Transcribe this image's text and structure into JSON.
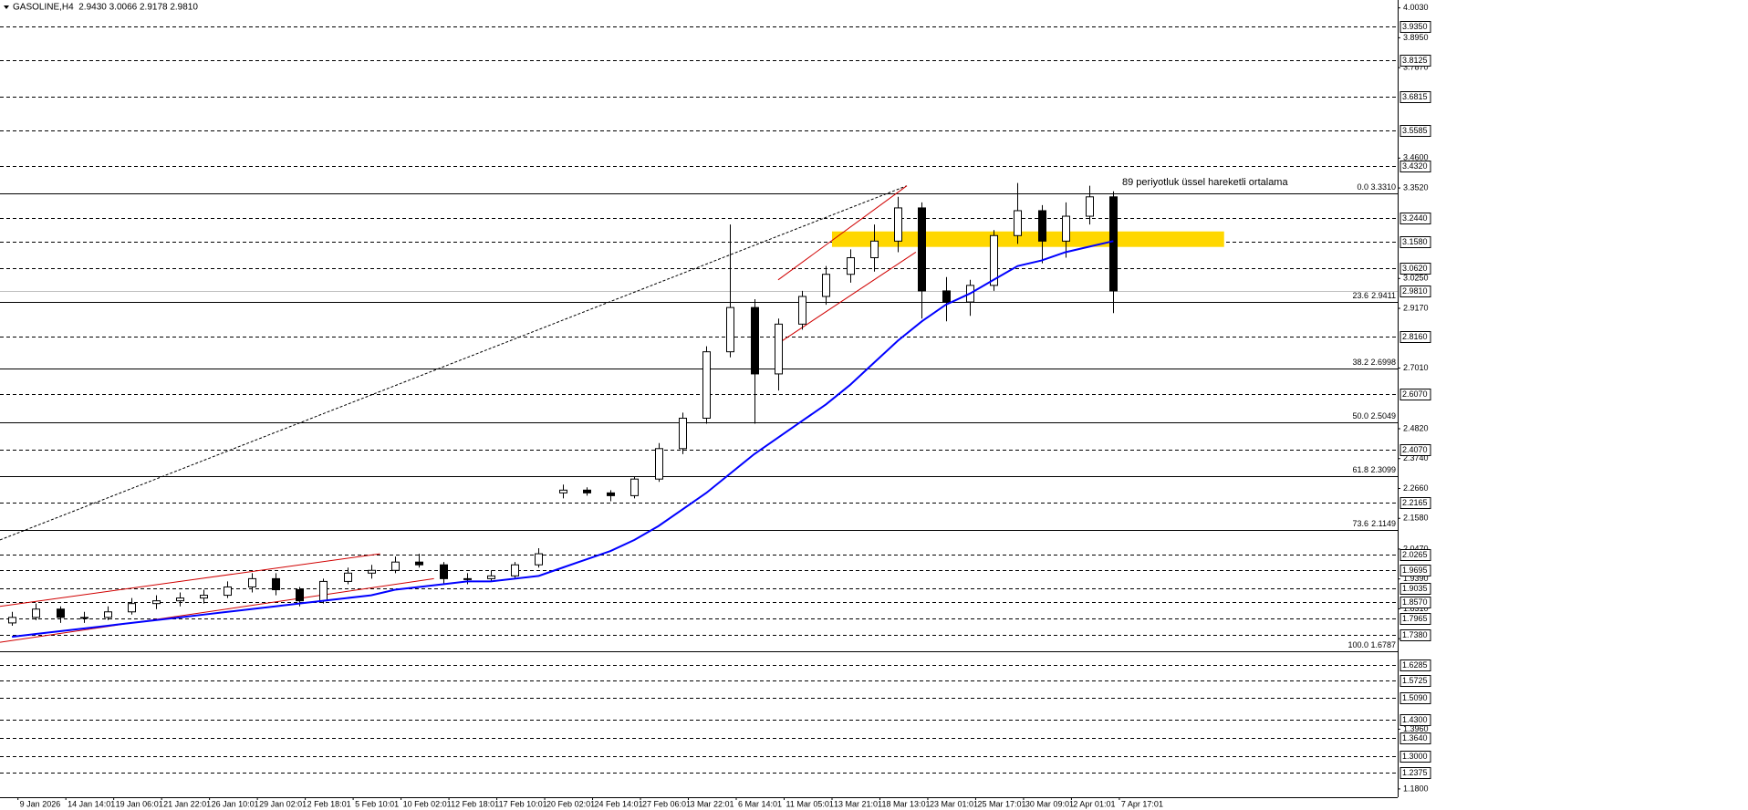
{
  "chart_data": {
    "type": "candlestick",
    "title": "GASOLINE,H4  2.9430 3.0066 2.9178 2.9810",
    "annotation": "89 periyotluk üssel hareketli ortalama",
    "x": [
      4,
      12,
      20,
      28,
      36,
      44,
      52,
      60,
      68,
      76,
      84,
      92,
      100,
      108,
      116,
      124,
      132,
      140,
      148,
      156,
      164,
      172,
      180,
      188,
      196,
      204,
      212,
      220,
      228,
      236,
      244,
      252,
      260,
      268,
      276,
      284,
      292,
      300,
      308,
      316,
      324,
      332,
      340,
      348,
      356,
      364,
      372
    ],
    "open": [
      1.78,
      1.8,
      1.83,
      1.8,
      1.8,
      1.82,
      1.85,
      1.86,
      1.87,
      1.88,
      1.91,
      1.94,
      1.9,
      1.86,
      1.93,
      1.96,
      1.97,
      2.0,
      1.99,
      1.94,
      1.94,
      1.95,
      1.99,
      2.25,
      2.26,
      2.25,
      2.24,
      2.3,
      2.41,
      2.52,
      2.76,
      2.92,
      2.68,
      2.86,
      2.96,
      3.04,
      3.1,
      3.16,
      3.28,
      2.98,
      2.94,
      3.0,
      3.18,
      3.27,
      3.16,
      3.25,
      3.32
    ],
    "high": [
      1.82,
      1.85,
      1.84,
      1.82,
      1.84,
      1.87,
      1.88,
      1.89,
      1.9,
      1.93,
      1.96,
      1.96,
      1.91,
      1.94,
      1.98,
      1.99,
      2.02,
      2.03,
      2.0,
      1.96,
      1.97,
      2.0,
      2.05,
      2.28,
      2.27,
      2.26,
      2.31,
      2.43,
      2.54,
      2.78,
      3.22,
      2.95,
      2.88,
      2.98,
      3.07,
      3.13,
      3.22,
      3.32,
      3.3,
      3.03,
      3.02,
      3.2,
      3.37,
      3.29,
      3.3,
      3.36,
      3.34
    ],
    "low": [
      1.77,
      1.79,
      1.78,
      1.78,
      1.79,
      1.81,
      1.83,
      1.84,
      1.85,
      1.87,
      1.89,
      1.88,
      1.84,
      1.85,
      1.92,
      1.94,
      1.96,
      1.98,
      1.92,
      1.92,
      1.93,
      1.94,
      1.98,
      2.23,
      2.24,
      2.22,
      2.23,
      2.29,
      2.39,
      2.5,
      2.74,
      2.5,
      2.62,
      2.84,
      2.93,
      3.01,
      3.05,
      3.12,
      2.88,
      2.87,
      2.89,
      2.98,
      3.15,
      3.08,
      3.1,
      3.22,
      2.9
    ],
    "close": [
      1.8,
      1.83,
      1.8,
      1.8,
      1.82,
      1.85,
      1.86,
      1.87,
      1.88,
      1.91,
      1.94,
      1.9,
      1.86,
      1.93,
      1.96,
      1.97,
      2.0,
      1.99,
      1.94,
      1.94,
      1.95,
      1.99,
      2.03,
      2.26,
      2.25,
      2.24,
      2.3,
      2.41,
      2.52,
      2.76,
      2.92,
      2.68,
      2.86,
      2.96,
      3.04,
      3.1,
      3.16,
      3.28,
      2.98,
      2.94,
      3.0,
      3.18,
      3.27,
      3.16,
      3.25,
      3.32,
      2.98
    ],
    "ema": {
      "color": "#0000ff",
      "values": [
        1.73,
        1.74,
        1.75,
        1.76,
        1.77,
        1.78,
        1.79,
        1.8,
        1.81,
        1.82,
        1.83,
        1.84,
        1.85,
        1.86,
        1.87,
        1.88,
        1.9,
        1.91,
        1.92,
        1.93,
        1.93,
        1.94,
        1.95,
        1.98,
        2.01,
        2.04,
        2.08,
        2.13,
        2.19,
        2.25,
        2.32,
        2.39,
        2.45,
        2.51,
        2.57,
        2.64,
        2.72,
        2.8,
        2.87,
        2.93,
        2.97,
        3.02,
        3.07,
        3.09,
        3.12,
        3.14,
        3.16
      ]
    },
    "xlim": [
      0,
      467
    ],
    "xticks": [
      {
        "value": 6,
        "label": "9 Jan 2026"
      },
      {
        "value": 22,
        "label": "14 Jan 14:01"
      },
      {
        "value": 38,
        "label": "19 Jan 06:01"
      },
      {
        "value": 54,
        "label": "21 Jan 22:01"
      },
      {
        "value": 70,
        "label": "26 Jan 10:01"
      },
      {
        "value": 86,
        "label": "29 Jan 02:01"
      },
      {
        "value": 102,
        "label": "2 Feb 18:01"
      },
      {
        "value": 118,
        "label": "5 Feb 10:01"
      },
      {
        "value": 134,
        "label": "10 Feb 02:01"
      },
      {
        "value": 150,
        "label": "12 Feb 18:01"
      },
      {
        "value": 166,
        "label": "17 Feb 10:01"
      },
      {
        "value": 182,
        "label": "20 Feb 02:01"
      },
      {
        "value": 198,
        "label": "24 Feb 14:01"
      },
      {
        "value": 214,
        "label": "27 Feb 06:01"
      },
      {
        "value": 230,
        "label": "3 Mar 22:01"
      },
      {
        "value": 246,
        "label": "6 Mar 14:01"
      },
      {
        "value": 262,
        "label": "11 Mar 05:01"
      },
      {
        "value": 278,
        "label": "13 Mar 21:01"
      },
      {
        "value": 294,
        "label": "18 Mar 13:01"
      },
      {
        "value": 310,
        "label": "23 Mar 01:01"
      },
      {
        "value": 326,
        "label": "25 Mar 17:01"
      },
      {
        "value": 342,
        "label": "30 Mar 09:01"
      },
      {
        "value": 358,
        "label": "2 Apr 01:01"
      },
      {
        "value": 374,
        "label": "7 Apr 17:01"
      }
    ],
    "ylim": [
      1.15,
      4.015
    ],
    "yticks": [
      {
        "value": 4.003,
        "label": "4.0030"
      },
      {
        "value": 3.895,
        "label": "3.8950"
      },
      {
        "value": 3.787,
        "label": "3.7870"
      },
      {
        "value": 3.46,
        "label": "3.4600"
      },
      {
        "value": 3.352,
        "label": "3.3520"
      },
      {
        "value": 3.025,
        "label": "3.0250"
      },
      {
        "value": 2.917,
        "label": "2.9170"
      },
      {
        "value": 2.701,
        "label": "2.7010"
      },
      {
        "value": 2.482,
        "label": "2.4820"
      },
      {
        "value": 2.374,
        "label": "2.3740"
      },
      {
        "value": 2.266,
        "label": "2.2660"
      },
      {
        "value": 2.158,
        "label": "2.1580"
      },
      {
        "value": 2.047,
        "label": "2.0470"
      },
      {
        "value": 1.939,
        "label": "1.9390"
      },
      {
        "value": 1.831,
        "label": "1.8310"
      },
      {
        "value": 1.723,
        "label": "1.7230"
      },
      {
        "value": 1.396,
        "label": "1.3960"
      },
      {
        "value": 1.18,
        "label": "1.1800"
      }
    ],
    "levels": [
      {
        "value": 3.935,
        "label": "3.9350"
      },
      {
        "value": 3.8125,
        "label": "3.8125"
      },
      {
        "value": 3.6815,
        "label": "3.6815"
      },
      {
        "value": 3.5585,
        "label": "3.5585"
      },
      {
        "value": 3.432,
        "label": "3.4320"
      },
      {
        "value": 3.244,
        "label": "3.2440"
      },
      {
        "value": 3.158,
        "label": "3.1580"
      },
      {
        "value": 3.062,
        "label": "3.0620"
      },
      {
        "value": 2.816,
        "label": "2.8160"
      },
      {
        "value": 2.607,
        "label": "2.6070"
      },
      {
        "value": 2.407,
        "label": "2.4070"
      },
      {
        "value": 2.2165,
        "label": "2.2165"
      },
      {
        "value": 2.0265,
        "label": "2.0265"
      },
      {
        "value": 1.9695,
        "label": "1.9695"
      },
      {
        "value": 1.9035,
        "label": "1.9035"
      },
      {
        "value": 1.857,
        "label": "1.8570"
      },
      {
        "value": 1.7965,
        "label": "1.7965"
      },
      {
        "value": 1.738,
        "label": "1.7380"
      },
      {
        "value": 1.6285,
        "label": "1.6285"
      },
      {
        "value": 1.5725,
        "label": "1.5725"
      },
      {
        "value": 1.509,
        "label": "1.5090"
      },
      {
        "value": 1.43,
        "label": "1.4300"
      },
      {
        "value": 1.364,
        "label": "1.3640"
      },
      {
        "value": 1.3,
        "label": "1.3000"
      },
      {
        "value": 1.2375,
        "label": "1.2375"
      }
    ],
    "price": {
      "value": 2.981,
      "label": "2.9810",
      "color": "#c0c0c0"
    },
    "fib": [
      {
        "level": "0.0",
        "value": 3.331,
        "label": "3.3310"
      },
      {
        "level": "23.6",
        "value": 2.9411,
        "label": "2.9411"
      },
      {
        "level": "38.2",
        "value": 2.6998,
        "label": "2.6998"
      },
      {
        "level": "50.0",
        "value": 2.5049,
        "label": "2.5049"
      },
      {
        "level": "61.8",
        "value": 2.3099,
        "label": "2.3099"
      },
      {
        "level": "73.6",
        "value": 2.1149,
        "label": "2.1149"
      },
      {
        "level": "100.0",
        "value": 1.6787,
        "label": "1.6787"
      }
    ],
    "zone": {
      "x": [
        278,
        409
      ],
      "y": [
        3.139,
        3.195
      ],
      "color": "#ffd700"
    },
    "trendlines": [
      {
        "color": "#000000",
        "dash": true,
        "x": [
          0,
          303
        ],
        "y": [
          2.08,
          3.36
        ]
      },
      {
        "color": "#d00000",
        "dash": false,
        "x": [
          0,
          127
        ],
        "y": [
          1.84,
          2.03
        ]
      },
      {
        "color": "#d00000",
        "dash": false,
        "x": [
          0,
          145
        ],
        "y": [
          1.71,
          1.94
        ]
      },
      {
        "color": "#d00000",
        "dash": false,
        "x": [
          260,
          303
        ],
        "y": [
          3.02,
          3.36
        ]
      },
      {
        "color": "#d00000",
        "dash": false,
        "x": [
          260,
          306
        ],
        "y": [
          2.79,
          3.12
        ]
      }
    ]
  }
}
